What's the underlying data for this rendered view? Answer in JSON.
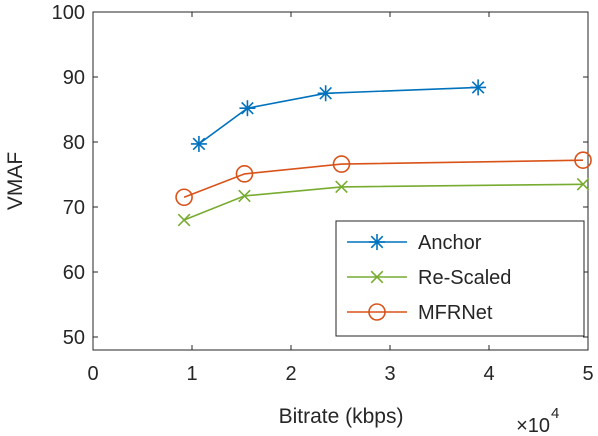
{
  "chart_data": {
    "type": "line",
    "xlabel": "Bitrate (kbps)",
    "ylabel": "VMAF",
    "xlim": [
      0,
      50000
    ],
    "ylim": [
      48,
      100
    ],
    "x_exponent_base": "×10",
    "x_exponent_power": "4",
    "xticks": [
      {
        "value": 0,
        "label": "0"
      },
      {
        "value": 10000,
        "label": "1"
      },
      {
        "value": 20000,
        "label": "2"
      },
      {
        "value": 30000,
        "label": "3"
      },
      {
        "value": 40000,
        "label": "4"
      },
      {
        "value": 50000,
        "label": "5"
      }
    ],
    "yticks": [
      {
        "value": 50,
        "label": "50"
      },
      {
        "value": 60,
        "label": "60"
      },
      {
        "value": 70,
        "label": "70"
      },
      {
        "value": 80,
        "label": "80"
      },
      {
        "value": 90,
        "label": "90"
      },
      {
        "value": 100,
        "label": "100"
      }
    ],
    "grid": false,
    "legend_position": "bottom-right",
    "series": [
      {
        "name": "Anchor",
        "color": "#0072BD",
        "marker": "asterisk",
        "points": [
          [
            10700,
            79.7
          ],
          [
            15600,
            85.2
          ],
          [
            23500,
            87.5
          ],
          [
            38900,
            88.4
          ]
        ]
      },
      {
        "name": "Re-Scaled",
        "color": "#77AC30",
        "marker": "x",
        "points": [
          [
            9200,
            68.0
          ],
          [
            15300,
            71.7
          ],
          [
            25100,
            73.1
          ],
          [
            49500,
            73.5
          ]
        ]
      },
      {
        "name": "MFRNet",
        "color": "#D95319",
        "marker": "circle",
        "points": [
          [
            9200,
            71.5
          ],
          [
            15300,
            75.1
          ],
          [
            25100,
            76.6
          ],
          [
            49500,
            77.2
          ]
        ]
      }
    ]
  }
}
